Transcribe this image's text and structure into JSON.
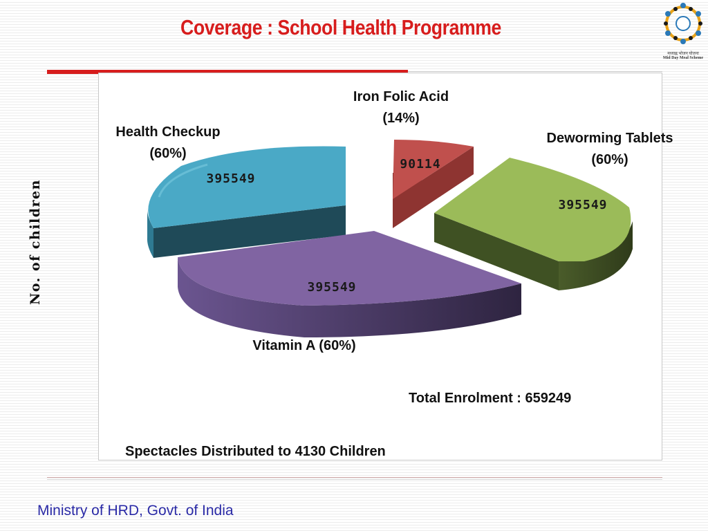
{
  "title": "Coverage : School Health Programme",
  "logo": {
    "caption_line1": "मध्याह्न भोजन योजना",
    "caption_line2": "Mid Day Meal Scheme"
  },
  "footer": "Ministry of HRD, Govt. of India",
  "colors": {
    "title": "#d71d1d",
    "footer": "#2a2aa6",
    "health_checkup": "#4aa9c6",
    "iron_folic_acid": "#c0504d",
    "deworming": "#9bbb59",
    "vitamin_a": "#8064a2"
  },
  "chart_data": {
    "type": "pie",
    "style": "3d-exploded",
    "title": "Coverage : School Health Programme",
    "ylabel": "No. of children",
    "slices": [
      {
        "label": "Health Checkup",
        "percent_label": "(60%)",
        "value": 395549,
        "value_label": "395549",
        "color": "#4aa9c6"
      },
      {
        "label": "Iron Folic Acid",
        "percent_label": "(14%)",
        "value": 90114,
        "value_label": "90114",
        "color": "#c0504d"
      },
      {
        "label": "Deworming Tablets",
        "percent_label": "(60%)",
        "value": 395549,
        "value_label": "395549",
        "color": "#9bbb59"
      },
      {
        "label": "Vitamin A (60%)",
        "value": 395549,
        "value_label": "395549",
        "color": "#8064a2"
      }
    ],
    "notes": {
      "total": "Total Enrolment : 659249",
      "spectacles": "Spectacles Distributed to 4130 Children"
    }
  }
}
